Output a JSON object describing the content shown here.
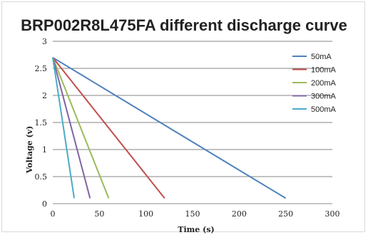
{
  "chart_data": {
    "type": "line",
    "title": "BRP002R8L475FA different discharge curve",
    "xlabel": "Time (s)",
    "ylabel": "Voltage (v)",
    "xlim": [
      0,
      300
    ],
    "ylim": [
      0,
      3
    ],
    "xticks": [
      "0",
      "50",
      "100",
      "150",
      "200",
      "250",
      "300"
    ],
    "yticks": [
      "0",
      "0.5",
      "1",
      "1.5",
      "2",
      "2.5",
      "3"
    ],
    "grid": "horizontal",
    "legend_position": "right",
    "series": [
      {
        "name": "50mA",
        "color": "#4f81bd",
        "x": [
          0,
          250
        ],
        "y": [
          2.7,
          0.1
        ]
      },
      {
        "name": "100mA",
        "color": "#c0504d",
        "x": [
          0,
          120
        ],
        "y": [
          2.7,
          0.1
        ]
      },
      {
        "name": "200mA",
        "color": "#9bbb59",
        "x": [
          0,
          60
        ],
        "y": [
          2.7,
          0.1
        ]
      },
      {
        "name": "300mA",
        "color": "#8064a2",
        "x": [
          0,
          40
        ],
        "y": [
          2.7,
          0.1
        ]
      },
      {
        "name": "500mA",
        "color": "#4bacc6",
        "x": [
          0,
          23
        ],
        "y": [
          2.7,
          0.1
        ]
      }
    ]
  }
}
